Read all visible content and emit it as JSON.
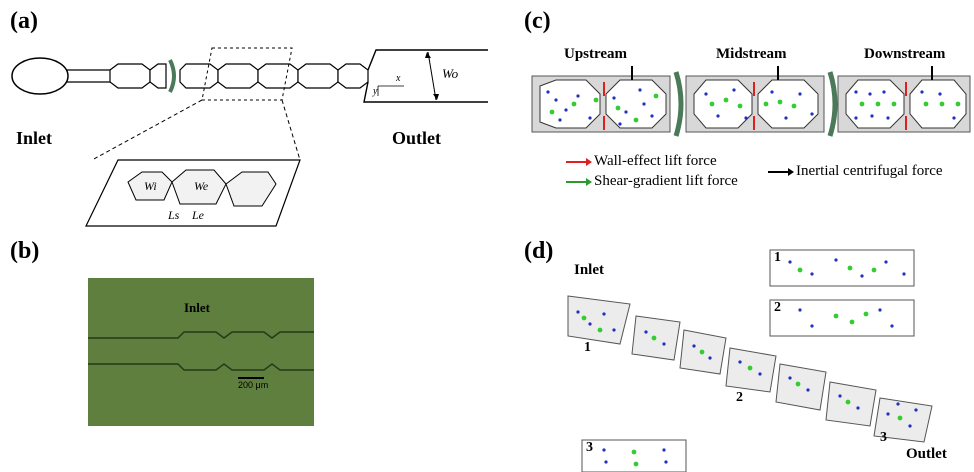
{
  "panels": {
    "a": {
      "label": "(a)",
      "inlet": "Inlet",
      "outlet": "Outlet",
      "dims": {
        "wo": "Wo",
        "wi": "Wi",
        "we": "We",
        "ls": "Ls",
        "le": "Le",
        "x": "x",
        "y": "y"
      }
    },
    "b": {
      "label": "(b)",
      "inlet": "Inlet",
      "scale_bar": "200 μm",
      "photo_color": "#5f7f3e"
    },
    "c": {
      "label": "(c)",
      "stages": [
        "Upstream",
        "Midstream",
        "Downstream"
      ],
      "legend": {
        "wall_effect": "Wall-effect lift force",
        "shear_gradient": "Shear-gradient lift force",
        "inertial": "Inertial centrifugal force"
      },
      "colors": {
        "red": "#e02020",
        "green": "#2a9a2a",
        "black": "#000000",
        "blue_particle": "#2030c0",
        "green_particle": "#33cc33"
      }
    },
    "d": {
      "label": "(d)",
      "inlet": "Inlet",
      "outlet": "Outlet",
      "markers": [
        "1",
        "2",
        "3"
      ],
      "insets": [
        "1",
        "2",
        "3"
      ]
    }
  }
}
